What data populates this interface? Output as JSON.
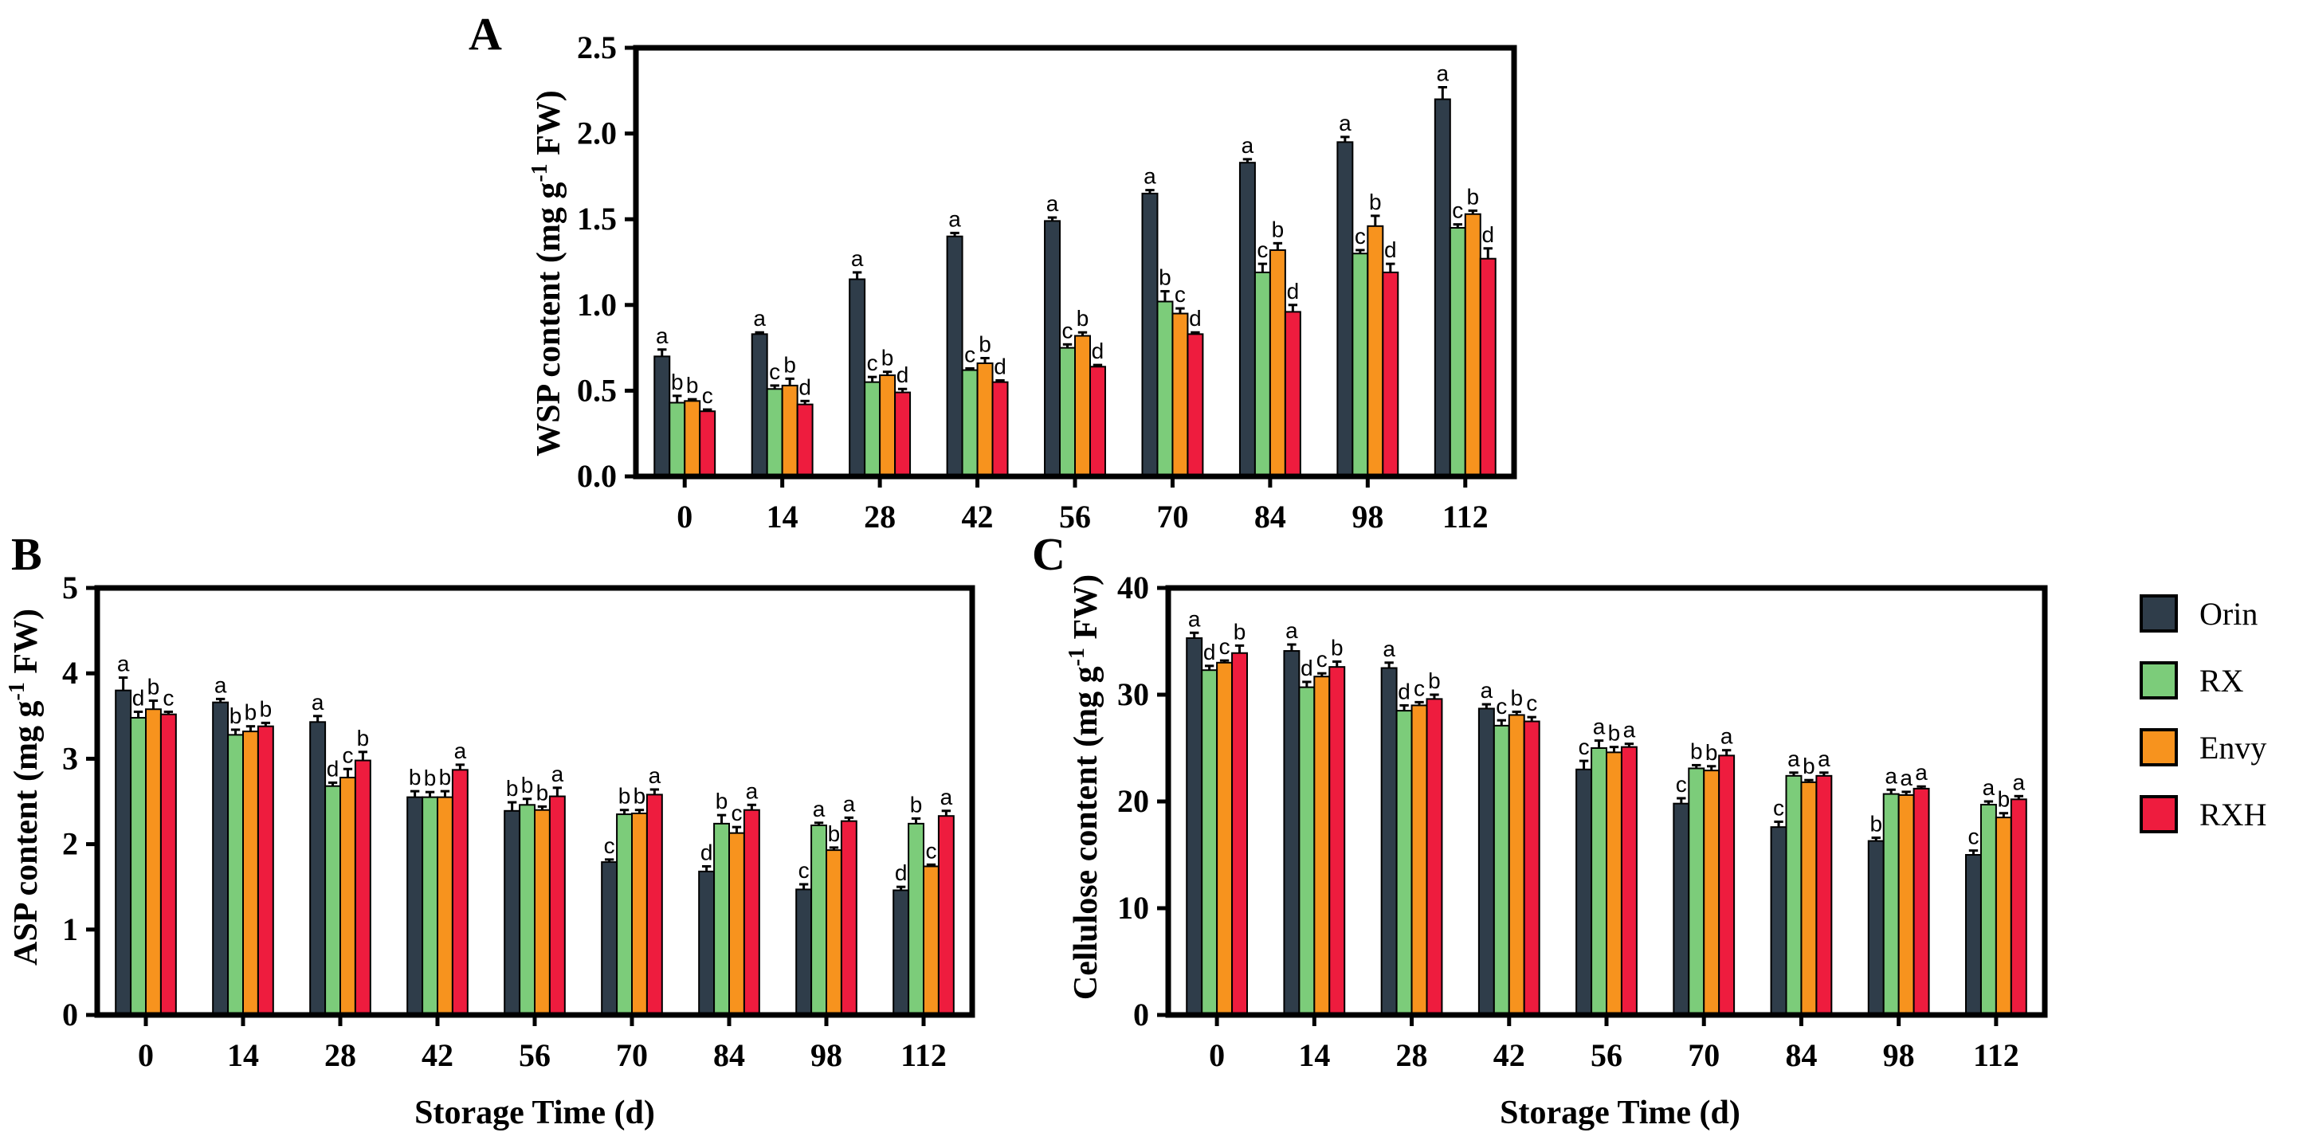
{
  "chart_data": [
    {
      "type": "bar",
      "panel": "A",
      "categories": [
        "0",
        "14",
        "28",
        "42",
        "56",
        "70",
        "84",
        "98",
        "112"
      ],
      "ylabel": "WSP content (mg g-1 FW)",
      "xlabel": "",
      "ylim": [
        0,
        2.5
      ],
      "yticks": [
        "0.0",
        "0.5",
        "1.0",
        "1.5",
        "2.0",
        "2.5"
      ],
      "series": [
        {
          "name": "Orin",
          "values": [
            0.7,
            0.83,
            1.15,
            1.4,
            1.49,
            1.65,
            1.83,
            1.95,
            2.2
          ],
          "errors": [
            0.04,
            0.01,
            0.04,
            0.02,
            0.02,
            0.02,
            0.02,
            0.03,
            0.07
          ],
          "letters": [
            "a",
            "a",
            "a",
            "a",
            "a",
            "a",
            "a",
            "a",
            "a"
          ]
        },
        {
          "name": "RX",
          "values": [
            0.43,
            0.51,
            0.55,
            0.62,
            0.75,
            1.02,
            1.19,
            1.3,
            1.45
          ],
          "errors": [
            0.04,
            0.02,
            0.03,
            0.01,
            0.02,
            0.06,
            0.05,
            0.02,
            0.02
          ],
          "letters": [
            "b",
            "c",
            "c",
            "c",
            "c",
            "b",
            "c",
            "c",
            "c"
          ]
        },
        {
          "name": "Envy",
          "values": [
            0.44,
            0.53,
            0.59,
            0.66,
            0.82,
            0.95,
            1.32,
            1.46,
            1.53
          ],
          "errors": [
            0.01,
            0.04,
            0.02,
            0.03,
            0.02,
            0.03,
            0.04,
            0.06,
            0.02
          ],
          "letters": [
            "b",
            "b",
            "b",
            "b",
            "b",
            "c",
            "b",
            "b",
            "b"
          ]
        },
        {
          "name": "RXH",
          "values": [
            0.38,
            0.42,
            0.49,
            0.55,
            0.64,
            0.83,
            0.96,
            1.19,
            1.27
          ],
          "errors": [
            0.01,
            0.02,
            0.02,
            0.01,
            0.01,
            0.01,
            0.04,
            0.05,
            0.06
          ],
          "letters": [
            "c",
            "d",
            "d",
            "d",
            "d",
            "d",
            "d",
            "d",
            "d"
          ]
        }
      ]
    },
    {
      "type": "bar",
      "panel": "B",
      "categories": [
        "0",
        "14",
        "28",
        "42",
        "56",
        "70",
        "84",
        "98",
        "112"
      ],
      "ylabel": "ASP content (mg g-1 FW)",
      "xlabel": "Storage Time (d)",
      "ylim": [
        0,
        5
      ],
      "yticks": [
        "0",
        "1",
        "2",
        "3",
        "4",
        "5"
      ],
      "series": [
        {
          "name": "Orin",
          "values": [
            3.8,
            3.66,
            3.43,
            2.55,
            2.39,
            1.79,
            1.68,
            1.47,
            1.46
          ],
          "errors": [
            0.15,
            0.04,
            0.07,
            0.07,
            0.1,
            0.03,
            0.06,
            0.06,
            0.04
          ],
          "letters": [
            "a",
            "a",
            "a",
            "b",
            "b",
            "c",
            "d",
            "c",
            "d"
          ]
        },
        {
          "name": "RX",
          "values": [
            3.48,
            3.28,
            2.68,
            2.55,
            2.46,
            2.35,
            2.24,
            2.22,
            2.24
          ],
          "errors": [
            0.07,
            0.06,
            0.04,
            0.06,
            0.07,
            0.05,
            0.1,
            0.03,
            0.06
          ],
          "letters": [
            "d",
            "b",
            "d",
            "b",
            "b",
            "b",
            "b",
            "a",
            "b"
          ]
        },
        {
          "name": "Envy",
          "values": [
            3.58,
            3.32,
            2.78,
            2.55,
            2.4,
            2.36,
            2.13,
            1.93,
            1.74
          ],
          "errors": [
            0.1,
            0.06,
            0.1,
            0.07,
            0.04,
            0.04,
            0.07,
            0.03,
            0.02
          ],
          "letters": [
            "b",
            "b",
            "c",
            "b",
            "b",
            "b",
            "c",
            "b",
            "c"
          ]
        },
        {
          "name": "RXH",
          "values": [
            3.52,
            3.38,
            2.98,
            2.87,
            2.56,
            2.58,
            2.4,
            2.27,
            2.33
          ],
          "errors": [
            0.03,
            0.04,
            0.1,
            0.06,
            0.1,
            0.06,
            0.06,
            0.04,
            0.06
          ],
          "letters": [
            "c",
            "b",
            "b",
            "a",
            "a",
            "a",
            "a",
            "a",
            "a"
          ]
        }
      ]
    },
    {
      "type": "bar",
      "panel": "C",
      "categories": [
        "0",
        "14",
        "28",
        "42",
        "56",
        "70",
        "84",
        "98",
        "112"
      ],
      "ylabel": "Cellulose content (mg g-1 FW)",
      "xlabel": "Storage Time (d)",
      "ylim": [
        0,
        40
      ],
      "yticks": [
        "0",
        "10",
        "20",
        "30",
        "40"
      ],
      "series": [
        {
          "name": "Orin",
          "values": [
            35.3,
            34.1,
            32.5,
            28.7,
            23.0,
            19.8,
            17.6,
            16.3,
            15.0
          ],
          "errors": [
            0.5,
            0.6,
            0.5,
            0.4,
            0.8,
            0.5,
            0.5,
            0.3,
            0.4
          ],
          "letters": [
            "a",
            "a",
            "a",
            "a",
            "c",
            "c",
            "c",
            "b",
            "c"
          ]
        },
        {
          "name": "RX",
          "values": [
            32.3,
            30.7,
            28.5,
            27.1,
            25.0,
            23.1,
            22.4,
            20.7,
            19.7
          ],
          "errors": [
            0.4,
            0.5,
            0.5,
            0.5,
            0.7,
            0.3,
            0.3,
            0.4,
            0.3
          ],
          "letters": [
            "d",
            "d",
            "d",
            "c",
            "a",
            "b",
            "a",
            "a",
            "a"
          ]
        },
        {
          "name": "Envy",
          "values": [
            33.0,
            31.7,
            29.0,
            28.1,
            24.6,
            22.9,
            21.8,
            20.6,
            18.5
          ],
          "errors": [
            0.2,
            0.3,
            0.3,
            0.3,
            0.5,
            0.4,
            0.2,
            0.3,
            0.4
          ],
          "letters": [
            "c",
            "c",
            "c",
            "b",
            "b",
            "b",
            "b",
            "a",
            "b"
          ]
        },
        {
          "name": "RXH",
          "values": [
            33.9,
            32.6,
            29.6,
            27.5,
            25.1,
            24.3,
            22.4,
            21.2,
            20.2
          ],
          "errors": [
            0.7,
            0.5,
            0.4,
            0.4,
            0.3,
            0.5,
            0.3,
            0.2,
            0.3
          ],
          "letters": [
            "b",
            "b",
            "b",
            "c",
            "a",
            "a",
            "a",
            "a",
            "a"
          ]
        }
      ]
    }
  ],
  "panel_labels": {
    "a": "A",
    "b": "B",
    "c": "C"
  },
  "axis_text": {
    "a_ylabel_main": "WSP content (mg g",
    "a_ylabel_sup": "-1",
    "a_ylabel_tail": " FW)",
    "b_ylabel_main": "ASP content (mg g",
    "b_ylabel_sup": "-1",
    "b_ylabel_tail": " FW)",
    "c_ylabel_main": "Cellulose content (mg g",
    "c_ylabel_sup": "-1",
    "c_ylabel_tail": " FW)",
    "b_xlabel": "Storage Time (d)",
    "c_xlabel": "Storage Time (d)"
  },
  "legend": {
    "position": "right",
    "items": [
      {
        "name": "Orin",
        "color": "#2f3d4a"
      },
      {
        "name": "RX",
        "color": "#7ccc7a"
      },
      {
        "name": "Envy",
        "color": "#f7931e"
      },
      {
        "name": "RXH",
        "color": "#ee1c3e"
      }
    ]
  }
}
